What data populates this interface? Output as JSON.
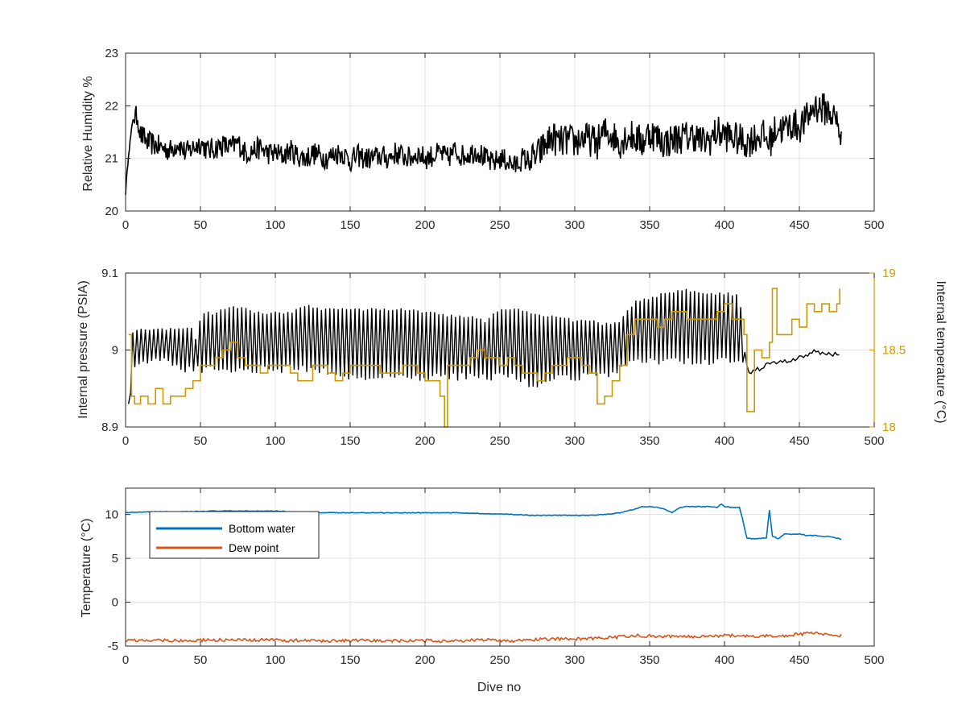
{
  "chart_data": [
    {
      "type": "line",
      "xlabel": "",
      "ylabel": "Relative Humidity %",
      "xlim": [
        0,
        500
      ],
      "ylim": [
        20,
        23
      ],
      "xticks": [
        "0",
        "50",
        "100",
        "150",
        "200",
        "250",
        "300",
        "350",
        "400",
        "450",
        "500"
      ],
      "yticks": [
        "20",
        "21",
        "22",
        "23"
      ],
      "grid": true,
      "series": [
        {
          "color": "#000000",
          "x": [
            0,
            2,
            5,
            8,
            10,
            15,
            20,
            25,
            30,
            35,
            40,
            45,
            50,
            55,
            60,
            65,
            70,
            75,
            80,
            85,
            90,
            95,
            100,
            105,
            110,
            115,
            120,
            125,
            130,
            135,
            140,
            145,
            150,
            155,
            160,
            165,
            170,
            175,
            180,
            185,
            190,
            195,
            200,
            205,
            210,
            215,
            220,
            225,
            230,
            235,
            240,
            245,
            250,
            255,
            260,
            265,
            270,
            275,
            280,
            285,
            290,
            295,
            300,
            305,
            310,
            315,
            320,
            325,
            330,
            335,
            340,
            345,
            350,
            355,
            360,
            365,
            370,
            375,
            380,
            385,
            390,
            395,
            400,
            405,
            410,
            415,
            420,
            425,
            430,
            435,
            440,
            445,
            450,
            455,
            460,
            465,
            470,
            475,
            478
          ],
          "y": [
            20.35,
            21.1,
            21.75,
            21.8,
            21.45,
            21.3,
            21.25,
            21.2,
            21.15,
            21.3,
            21.1,
            21.2,
            21.3,
            21.15,
            21.2,
            21.25,
            21.2,
            21.3,
            21.1,
            21.15,
            21.2,
            21.1,
            21.1,
            21.05,
            21.15,
            21.05,
            21.0,
            21.1,
            21.05,
            21.0,
            21.1,
            21.1,
            20.95,
            21.05,
            21.0,
            21.0,
            21.05,
            21.0,
            21.1,
            21.05,
            21.0,
            21.1,
            21.0,
            21.05,
            21.1,
            21.0,
            21.15,
            21.05,
            21.1,
            21.15,
            21.0,
            20.9,
            21.0,
            20.95,
            20.85,
            21.0,
            20.95,
            21.05,
            21.25,
            21.4,
            21.3,
            21.35,
            21.3,
            21.4,
            21.35,
            21.3,
            21.5,
            21.45,
            21.3,
            21.45,
            21.4,
            21.3,
            21.5,
            21.4,
            21.3,
            21.35,
            21.4,
            21.4,
            21.45,
            21.3,
            21.35,
            21.5,
            21.45,
            21.4,
            21.35,
            21.3,
            21.4,
            21.45,
            21.3,
            21.6,
            21.55,
            21.65,
            21.6,
            21.75,
            22.0,
            21.95,
            21.9,
            21.7,
            21.4
          ]
        }
      ]
    },
    {
      "type": "line",
      "xlabel": "",
      "ylabel": "Internal pressure (PSIA)",
      "y2label": "Internal temperature (°C)",
      "xlim": [
        0,
        500
      ],
      "ylim": [
        8.9,
        9.1
      ],
      "y2lim": [
        18,
        19
      ],
      "xticks": [
        "0",
        "50",
        "100",
        "150",
        "200",
        "250",
        "300",
        "350",
        "400",
        "450",
        "500"
      ],
      "yticks": [
        "8.9",
        "9",
        "9.1"
      ],
      "y2ticks": [
        "18",
        "18.5",
        "19"
      ],
      "grid": true,
      "series": [
        {
          "axis": "left",
          "color": "#000000",
          "x": [
            2,
            5,
            8,
            15,
            25,
            35,
            45,
            48,
            50,
            60,
            70,
            80,
            90,
            100,
            110,
            120,
            130,
            140,
            150,
            160,
            170,
            180,
            190,
            200,
            210,
            220,
            230,
            240,
            250,
            260,
            270,
            280,
            290,
            300,
            310,
            320,
            330,
            340,
            350,
            360,
            370,
            380,
            390,
            400,
            410,
            415,
            420,
            430,
            440,
            450,
            460,
            470,
            477
          ],
          "y_low": [
            8.92,
            8.97,
            8.98,
            8.98,
            8.98,
            8.97,
            8.97,
            8.97,
            8.97,
            8.97,
            8.97,
            8.97,
            8.97,
            8.97,
            8.97,
            8.97,
            8.97,
            8.96,
            8.96,
            8.96,
            8.96,
            8.96,
            8.96,
            8.96,
            8.96,
            8.96,
            8.96,
            8.96,
            8.96,
            8.96,
            8.95,
            8.95,
            8.96,
            8.96,
            8.96,
            8.96,
            8.97,
            8.98,
            8.98,
            8.98,
            8.98,
            8.98,
            8.98,
            8.98,
            8.98,
            8.97,
            8.97,
            8.98,
            8.985,
            8.99,
            8.995,
            8.995,
            8.995
          ],
          "y_high": [
            8.93,
            9.03,
            9.03,
            9.03,
            9.03,
            9.03,
            9.03,
            9.01,
            9.05,
            9.05,
            9.06,
            9.055,
            9.05,
            9.05,
            9.05,
            9.06,
            9.055,
            9.055,
            9.055,
            9.055,
            9.055,
            9.055,
            9.055,
            9.05,
            9.05,
            9.045,
            9.045,
            9.04,
            9.055,
            9.055,
            9.05,
            9.045,
            9.045,
            9.04,
            9.04,
            9.035,
            9.04,
            9.065,
            9.07,
            9.075,
            9.08,
            9.08,
            9.075,
            9.075,
            9.075,
            8.97,
            8.975,
            8.985,
            8.985,
            8.99,
            9.0,
            8.995,
            8.995
          ]
        },
        {
          "axis": "right",
          "color": "#CC9900",
          "x": [
            2,
            4,
            6,
            10,
            15,
            20,
            25,
            30,
            35,
            40,
            45,
            50,
            55,
            60,
            65,
            70,
            75,
            80,
            85,
            90,
            95,
            100,
            105,
            110,
            115,
            120,
            125,
            130,
            135,
            140,
            145,
            150,
            155,
            160,
            165,
            170,
            175,
            180,
            185,
            190,
            195,
            200,
            205,
            210,
            213,
            215,
            220,
            225,
            230,
            235,
            240,
            245,
            250,
            255,
            260,
            265,
            270,
            275,
            280,
            285,
            290,
            295,
            300,
            305,
            310,
            315,
            320,
            325,
            330,
            335,
            340,
            345,
            350,
            355,
            360,
            365,
            370,
            375,
            380,
            385,
            390,
            395,
            400,
            405,
            410,
            413,
            415,
            420,
            425,
            430,
            432,
            435,
            440,
            445,
            450,
            455,
            460,
            465,
            470,
            475,
            477
          ],
          "y": [
            18.6,
            18.2,
            18.15,
            18.2,
            18.15,
            18.25,
            18.15,
            18.2,
            18.2,
            18.25,
            18.3,
            18.4,
            18.4,
            18.45,
            18.5,
            18.55,
            18.45,
            18.4,
            18.4,
            18.35,
            18.4,
            18.4,
            18.4,
            18.35,
            18.3,
            18.3,
            18.4,
            18.4,
            18.35,
            18.3,
            18.35,
            18.4,
            18.4,
            18.4,
            18.4,
            18.35,
            18.35,
            18.35,
            18.4,
            18.4,
            18.35,
            18.3,
            18.3,
            18.2,
            18.0,
            18.4,
            18.4,
            18.4,
            18.45,
            18.5,
            18.45,
            18.45,
            18.4,
            18.45,
            18.4,
            18.35,
            18.35,
            18.3,
            18.35,
            18.4,
            18.4,
            18.45,
            18.45,
            18.4,
            18.35,
            18.15,
            18.2,
            18.3,
            18.4,
            18.6,
            18.7,
            18.7,
            18.7,
            18.65,
            18.7,
            18.75,
            18.75,
            18.7,
            18.7,
            18.7,
            18.7,
            18.75,
            18.8,
            18.7,
            18.7,
            18.6,
            18.1,
            18.5,
            18.45,
            18.55,
            18.9,
            18.6,
            18.6,
            18.7,
            18.65,
            18.8,
            18.75,
            18.8,
            18.75,
            18.8,
            18.9
          ]
        }
      ]
    },
    {
      "type": "line",
      "xlabel": "Dive no",
      "ylabel": "Temperature (°C)",
      "xlim": [
        0,
        500
      ],
      "ylim": [
        -5,
        13
      ],
      "xticks": [
        "0",
        "50",
        "100",
        "150",
        "200",
        "250",
        "300",
        "350",
        "400",
        "450",
        "500"
      ],
      "yticks": [
        "-5",
        "0",
        "5",
        "10"
      ],
      "grid": true,
      "legend_position": "top-left",
      "series": [
        {
          "name": "Bottom water",
          "color": "#0072BD",
          "x": [
            0,
            20,
            40,
            60,
            80,
            100,
            110,
            120,
            140,
            160,
            180,
            200,
            220,
            240,
            260,
            270,
            280,
            290,
            300,
            310,
            320,
            330,
            340,
            345,
            350,
            355,
            360,
            365,
            370,
            375,
            380,
            390,
            395,
            398,
            400,
            405,
            410,
            412,
            415,
            420,
            425,
            428,
            430,
            432,
            434,
            436,
            440,
            445,
            450,
            455,
            460,
            465,
            470,
            475,
            478
          ],
          "y": [
            10.2,
            10.3,
            10.3,
            10.4,
            10.4,
            10.4,
            10.3,
            10.2,
            10.2,
            10.2,
            10.2,
            10.2,
            10.2,
            10.1,
            10.0,
            9.9,
            9.9,
            9.9,
            9.9,
            9.9,
            10.0,
            10.2,
            10.6,
            10.9,
            10.9,
            10.8,
            10.6,
            10.2,
            10.8,
            10.9,
            10.9,
            10.9,
            10.8,
            11.2,
            10.9,
            10.8,
            10.8,
            9.5,
            7.3,
            7.2,
            7.3,
            7.3,
            10.5,
            7.5,
            7.4,
            7.2,
            7.8,
            7.7,
            7.8,
            7.6,
            7.6,
            7.5,
            7.5,
            7.3,
            7.2
          ]
        },
        {
          "name": "Dew point",
          "color": "#D95319",
          "x": [
            0,
            20,
            40,
            60,
            80,
            100,
            120,
            140,
            160,
            180,
            200,
            220,
            240,
            260,
            280,
            300,
            320,
            340,
            360,
            380,
            400,
            420,
            440,
            460,
            478
          ],
          "y": [
            -4.4,
            -4.3,
            -4.4,
            -4.3,
            -4.35,
            -4.3,
            -4.4,
            -4.4,
            -4.4,
            -4.4,
            -4.4,
            -4.4,
            -4.3,
            -4.4,
            -4.2,
            -4.2,
            -4.1,
            -3.8,
            -3.9,
            -3.9,
            -3.8,
            -3.9,
            -3.8,
            -3.5,
            -3.8
          ]
        }
      ]
    }
  ]
}
